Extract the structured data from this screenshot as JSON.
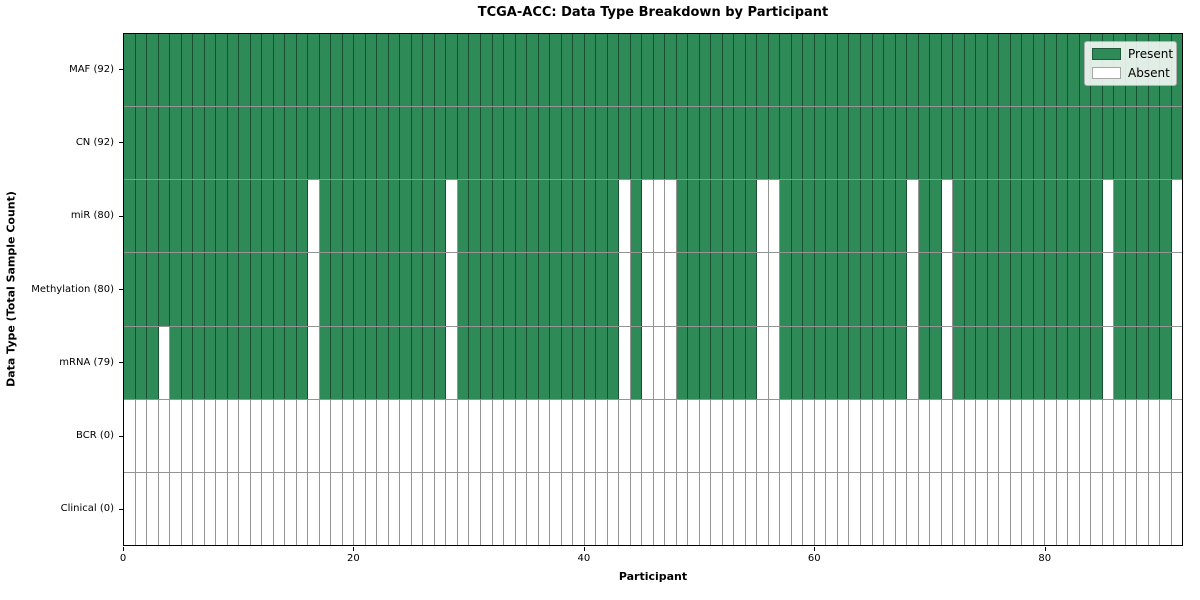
{
  "chart_data": {
    "type": "heatmap",
    "title": "TCGA-ACC: Data Type Breakdown by Participant",
    "xlabel": "Participant",
    "ylabel": "Data Type (Total Sample Count)",
    "n_participants": 92,
    "x_ticks": [
      0,
      20,
      40,
      60,
      80
    ],
    "grid": "cell-borders",
    "legend_position": "upper-right",
    "legend": {
      "entries": [
        {
          "label": "Present",
          "color": "#2e8b57"
        },
        {
          "label": "Absent",
          "color": "#ffffff"
        }
      ]
    },
    "colors": {
      "present": "#2e8b57",
      "absent": "#ffffff",
      "cell_edge": "rgba(0,0,0,0.42)",
      "plot_border": "#000000"
    },
    "rows": [
      {
        "label": "MAF (92)",
        "name": "MAF",
        "present_count": 92,
        "all_absent": false,
        "absent_participants": []
      },
      {
        "label": "CN (92)",
        "name": "CN",
        "present_count": 92,
        "all_absent": false,
        "absent_participants": []
      },
      {
        "label": "miR (80)",
        "name": "miR",
        "present_count": 80,
        "all_absent": false,
        "absent_participants": [
          16,
          28,
          43,
          45,
          46,
          47,
          55,
          56,
          68,
          71,
          85,
          91
        ]
      },
      {
        "label": "Methylation (80)",
        "name": "Methylation",
        "present_count": 80,
        "all_absent": false,
        "absent_participants": [
          16,
          28,
          43,
          45,
          46,
          47,
          55,
          56,
          68,
          71,
          85,
          91
        ]
      },
      {
        "label": "mRNA (79)",
        "name": "mRNA",
        "present_count": 79,
        "all_absent": false,
        "absent_participants": [
          3,
          16,
          28,
          43,
          45,
          46,
          47,
          55,
          56,
          68,
          71,
          85,
          91
        ]
      },
      {
        "label": "BCR (0)",
        "name": "BCR",
        "present_count": 0,
        "all_absent": true,
        "absent_participants": []
      },
      {
        "label": "Clinical (0)",
        "name": "Clinical",
        "present_count": 0,
        "all_absent": true,
        "absent_participants": []
      }
    ]
  }
}
